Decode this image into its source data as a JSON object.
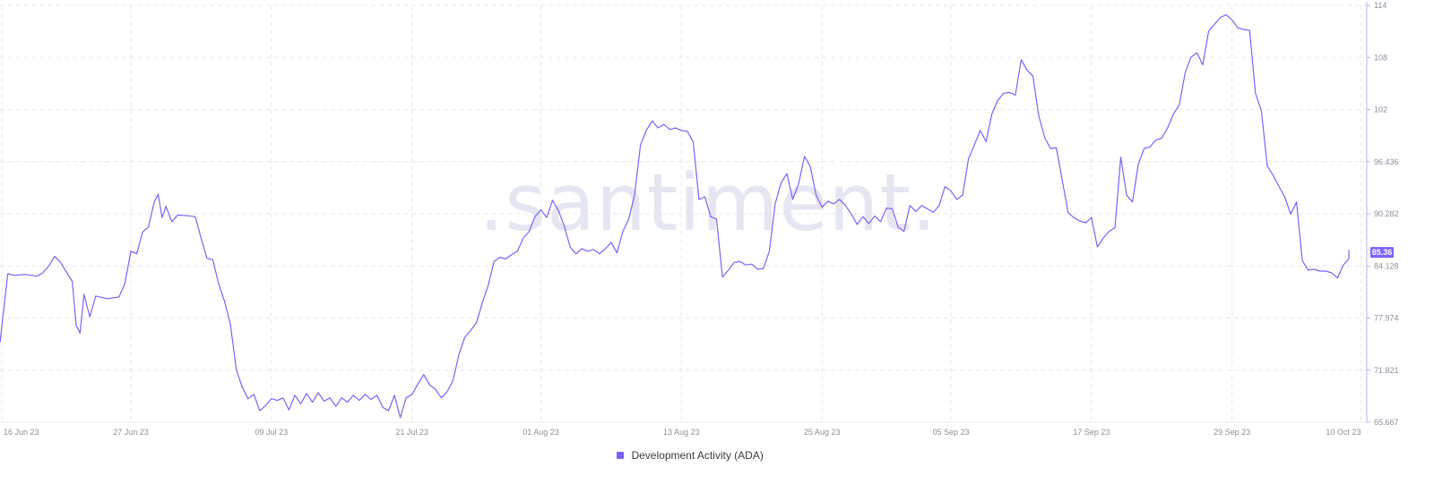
{
  "watermark": ".santiment.",
  "legend": {
    "label": "Development Activity (ADA)"
  },
  "colors": {
    "line": "#7b61ff",
    "grid": "#e6e8ee",
    "axis": "#b9b3ff",
    "badge_bg": "#7b61ff",
    "badge_text": "#ffffff"
  },
  "chart_data": {
    "type": "line",
    "series": [
      {
        "name": "Development Activity (ADA)"
      }
    ],
    "x_tick_labels": [
      "16 Jun 23",
      "27 Jun 23",
      "09 Jul 23",
      "21 Jul 23",
      "01 Aug 23",
      "13 Aug 23",
      "25 Aug 23",
      "05 Sep 23",
      "17 Sep 23",
      "29 Sep 23",
      "10 Oct 23"
    ],
    "y_tick_labels": [
      "114",
      "108",
      "102",
      "96.436",
      "90.282",
      "84.128",
      "77.974",
      "71.821",
      "65.667"
    ],
    "ylim": [
      65.667,
      114
    ],
    "last_value_label": "85.36",
    "grid": true,
    "legend_position": "bottom-center",
    "points": [
      [
        "16 Jun 23",
        74.9
      ],
      [
        "16 Jun 23",
        82.9
      ],
      [
        "17 Jun 23",
        82.7
      ],
      [
        "18 Jun 23",
        82.8
      ],
      [
        "19 Jun 23",
        82.6
      ],
      [
        "19 Jun 23",
        83.0
      ],
      [
        "20 Jun 23",
        83.8
      ],
      [
        "20 Jun 23",
        84.9
      ],
      [
        "21 Jun 23",
        84.2
      ],
      [
        "22 Jun 23",
        82.0
      ],
      [
        "22 Jun 23",
        76.9
      ],
      [
        "22 Jun 23",
        76.0
      ],
      [
        "23 Jun 23",
        80.5
      ],
      [
        "23 Jun 23",
        77.9
      ],
      [
        "24 Jun 23",
        80.3
      ],
      [
        "25 Jun 23",
        80.0
      ],
      [
        "26 Jun 23",
        80.2
      ],
      [
        "26 Jun 23",
        81.8
      ],
      [
        "27 Jun 23",
        85.5
      ],
      [
        "27 Jun 23",
        85.2
      ],
      [
        "28 Jun 23",
        87.7
      ],
      [
        "28 Jun 23",
        88.3
      ],
      [
        "29 Jun 23",
        91.2
      ],
      [
        "29 Jun 23",
        92.1
      ],
      [
        "29 Jun 23",
        89.4
      ],
      [
        "30 Jun 23",
        90.7
      ],
      [
        "30 Jun 23",
        88.9
      ],
      [
        "01 Jul 23",
        89.7
      ],
      [
        "02 Jul 23",
        89.6
      ],
      [
        "02 Jul 23",
        89.5
      ],
      [
        "03 Jul 23",
        87.0
      ],
      [
        "03 Jul 23",
        84.7
      ],
      [
        "04 Jul 23",
        84.5
      ],
      [
        "04 Jul 23",
        81.7
      ],
      [
        "05 Jul 23",
        79.7
      ],
      [
        "05 Jul 23",
        77.0
      ],
      [
        "06 Jul 23",
        71.8
      ],
      [
        "06 Jul 23",
        69.8
      ],
      [
        "07 Jul 23",
        68.4
      ],
      [
        "07 Jul 23",
        68.9
      ],
      [
        "08 Jul 23",
        67.0
      ],
      [
        "08 Jul 23",
        67.6
      ],
      [
        "09 Jul 23",
        68.4
      ],
      [
        "09 Jul 23",
        68.2
      ],
      [
        "10 Jul 23",
        68.5
      ],
      [
        "10 Jul 23",
        67.1
      ],
      [
        "11 Jul 23",
        68.8
      ],
      [
        "11 Jul 23",
        67.8
      ],
      [
        "12 Jul 23",
        69.0
      ],
      [
        "12 Jul 23",
        68.0
      ],
      [
        "13 Jul 23",
        69.1
      ],
      [
        "13 Jul 23",
        68.1
      ],
      [
        "14 Jul 23",
        68.5
      ],
      [
        "14 Jul 23",
        67.5
      ],
      [
        "15 Jul 23",
        68.5
      ],
      [
        "15 Jul 23",
        68.0
      ],
      [
        "16 Jul 23",
        68.8
      ],
      [
        "16 Jul 23",
        68.2
      ],
      [
        "17 Jul 23",
        68.9
      ],
      [
        "17 Jul 23",
        68.3
      ],
      [
        "18 Jul 23",
        68.8
      ],
      [
        "18 Jul 23",
        67.4
      ],
      [
        "19 Jul 23",
        67.0
      ],
      [
        "19 Jul 23",
        68.8
      ],
      [
        "20 Jul 23",
        66.2
      ],
      [
        "20 Jul 23",
        68.5
      ],
      [
        "21 Jul 23",
        68.9
      ],
      [
        "21 Jul 23",
        70.1
      ],
      [
        "22 Jul 23",
        71.2
      ],
      [
        "22 Jul 23",
        70.0
      ],
      [
        "23 Jul 23",
        69.5
      ],
      [
        "23 Jul 23",
        68.5
      ],
      [
        "24 Jul 23",
        69.2
      ],
      [
        "24 Jul 23",
        70.5
      ],
      [
        "25 Jul 23",
        73.5
      ],
      [
        "25 Jul 23",
        75.5
      ],
      [
        "26 Jul 23",
        76.3
      ],
      [
        "26 Jul 23",
        77.2
      ],
      [
        "27 Jul 23",
        79.5
      ],
      [
        "27 Jul 23",
        81.5
      ],
      [
        "28 Jul 23",
        84.3
      ],
      [
        "28 Jul 23",
        84.8
      ],
      [
        "29 Jul 23",
        84.6
      ],
      [
        "29 Jul 23",
        85.1
      ],
      [
        "30 Jul 23",
        85.5
      ],
      [
        "30 Jul 23",
        87.0
      ],
      [
        "31 Jul 23",
        87.8
      ],
      [
        "31 Jul 23",
        89.5
      ],
      [
        "01 Aug 23",
        90.3
      ],
      [
        "01 Aug 23",
        89.4
      ],
      [
        "02 Aug 23",
        91.4
      ],
      [
        "02 Aug 23",
        90.2
      ],
      [
        "03 Aug 23",
        88.4
      ],
      [
        "03 Aug 23",
        86.0
      ],
      [
        "04 Aug 23",
        85.2
      ],
      [
        "04 Aug 23",
        85.8
      ],
      [
        "05 Aug 23",
        85.5
      ],
      [
        "05 Aug 23",
        85.7
      ],
      [
        "06 Aug 23",
        85.2
      ],
      [
        "06 Aug 23",
        85.8
      ],
      [
        "07 Aug 23",
        86.5
      ],
      [
        "07 Aug 23",
        85.3
      ],
      [
        "08 Aug 23",
        87.8
      ],
      [
        "08 Aug 23",
        89.2
      ],
      [
        "09 Aug 23",
        92.0
      ],
      [
        "09 Aug 23",
        97.8
      ],
      [
        "10 Aug 23",
        99.5
      ],
      [
        "10 Aug 23",
        100.6
      ],
      [
        "11 Aug 23",
        99.8
      ],
      [
        "11 Aug 23",
        100.2
      ],
      [
        "12 Aug 23",
        99.6
      ],
      [
        "12 Aug 23",
        99.8
      ],
      [
        "13 Aug 23",
        99.5
      ],
      [
        "13 Aug 23",
        99.4
      ],
      [
        "14 Aug 23",
        98.2
      ],
      [
        "14 Aug 23",
        91.5
      ],
      [
        "15 Aug 23",
        91.8
      ],
      [
        "15 Aug 23",
        89.5
      ],
      [
        "16 Aug 23",
        89.2
      ],
      [
        "16 Aug 23",
        82.5
      ],
      [
        "17 Aug 23",
        83.3
      ],
      [
        "17 Aug 23",
        84.2
      ],
      [
        "18 Aug 23",
        84.3
      ],
      [
        "18 Aug 23",
        83.9
      ],
      [
        "19 Aug 23",
        84.0
      ],
      [
        "19 Aug 23",
        83.4
      ],
      [
        "20 Aug 23",
        83.5
      ],
      [
        "20 Aug 23",
        85.5
      ],
      [
        "21 Aug 23",
        91.0
      ],
      [
        "21 Aug 23",
        93.4
      ],
      [
        "22 Aug 23",
        94.5
      ],
      [
        "22 Aug 23",
        91.5
      ],
      [
        "23 Aug 23",
        93.3
      ],
      [
        "23 Aug 23",
        96.5
      ],
      [
        "24 Aug 23",
        95.3
      ],
      [
        "24 Aug 23",
        92.0
      ],
      [
        "25 Aug 23",
        90.6
      ],
      [
        "25 Aug 23",
        91.3
      ],
      [
        "26 Aug 23",
        91.0
      ],
      [
        "26 Aug 23",
        91.5
      ],
      [
        "27 Aug 23",
        90.8
      ],
      [
        "27 Aug 23",
        89.8
      ],
      [
        "28 Aug 23",
        88.6
      ],
      [
        "28 Aug 23",
        89.5
      ],
      [
        "29 Aug 23",
        88.7
      ],
      [
        "29 Aug 23",
        89.6
      ],
      [
        "30 Aug 23",
        88.9
      ],
      [
        "30 Aug 23",
        90.5
      ],
      [
        "31 Aug 23",
        90.4
      ],
      [
        "31 Aug 23",
        88.3
      ],
      [
        "01 Sep 23",
        87.8
      ],
      [
        "01 Sep 23",
        90.8
      ],
      [
        "02 Sep 23",
        90.1
      ],
      [
        "02 Sep 23",
        90.8
      ],
      [
        "03 Sep 23",
        90.4
      ],
      [
        "03 Sep 23",
        90.0
      ],
      [
        "04 Sep 23",
        90.8
      ],
      [
        "04 Sep 23",
        93.0
      ],
      [
        "05 Sep 23",
        92.5
      ],
      [
        "05 Sep 23",
        91.5
      ],
      [
        "06 Sep 23",
        92.0
      ],
      [
        "06 Sep 23",
        96.2
      ],
      [
        "07 Sep 23",
        97.8
      ],
      [
        "07 Sep 23",
        99.5
      ],
      [
        "08 Sep 23",
        98.2
      ],
      [
        "08 Sep 23",
        101.4
      ],
      [
        "09 Sep 23",
        103.0
      ],
      [
        "09 Sep 23",
        103.8
      ],
      [
        "10 Sep 23",
        103.9
      ],
      [
        "10 Sep 23",
        103.6
      ],
      [
        "11 Sep 23",
        107.7
      ],
      [
        "11 Sep 23",
        106.5
      ],
      [
        "12 Sep 23",
        105.8
      ],
      [
        "12 Sep 23",
        101.2
      ],
      [
        "13 Sep 23",
        98.7
      ],
      [
        "13 Sep 23",
        97.4
      ],
      [
        "14 Sep 23",
        97.5
      ],
      [
        "14 Sep 23",
        93.8
      ],
      [
        "15 Sep 23",
        90.0
      ],
      [
        "15 Sep 23",
        89.4
      ],
      [
        "16 Sep 23",
        89.0
      ],
      [
        "16 Sep 23",
        88.8
      ],
      [
        "17 Sep 23",
        89.4
      ],
      [
        "17 Sep 23",
        86.0
      ],
      [
        "18 Sep 23",
        87.0
      ],
      [
        "18 Sep 23",
        87.8
      ],
      [
        "19 Sep 23",
        88.2
      ],
      [
        "19 Sep 23",
        96.4
      ],
      [
        "20 Sep 23",
        92.0
      ],
      [
        "20 Sep 23",
        91.2
      ],
      [
        "21 Sep 23",
        95.6
      ],
      [
        "21 Sep 23",
        97.4
      ],
      [
        "22 Sep 23",
        97.6
      ],
      [
        "22 Sep 23",
        98.4
      ],
      [
        "23 Sep 23",
        98.6
      ],
      [
        "23 Sep 23",
        99.8
      ],
      [
        "24 Sep 23",
        101.4
      ],
      [
        "24 Sep 23",
        102.5
      ],
      [
        "25 Sep 23",
        106.2
      ],
      [
        "25 Sep 23",
        108.0
      ],
      [
        "26 Sep 23",
        108.5
      ],
      [
        "26 Sep 23",
        107.1
      ],
      [
        "27 Sep 23",
        111.0
      ],
      [
        "27 Sep 23",
        111.8
      ],
      [
        "28 Sep 23",
        112.6
      ],
      [
        "28 Sep 23",
        112.9
      ],
      [
        "29 Sep 23",
        112.3
      ],
      [
        "29 Sep 23",
        111.4
      ],
      [
        "30 Sep 23",
        111.2
      ],
      [
        "30 Sep 23",
        111.1
      ],
      [
        "01 Oct 23",
        103.8
      ],
      [
        "01 Oct 23",
        101.8
      ],
      [
        "02 Oct 23",
        95.4
      ],
      [
        "02 Oct 23",
        94.3
      ],
      [
        "03 Oct 23",
        93.0
      ],
      [
        "03 Oct 23",
        91.8
      ],
      [
        "04 Oct 23",
        89.8
      ],
      [
        "04 Oct 23",
        91.2
      ],
      [
        "05 Oct 23",
        84.4
      ],
      [
        "05 Oct 23",
        83.3
      ],
      [
        "06 Oct 23",
        83.4
      ],
      [
        "06 Oct 23",
        83.2
      ],
      [
        "07 Oct 23",
        83.2
      ],
      [
        "07 Oct 23",
        83.0
      ],
      [
        "08 Oct 23",
        82.4
      ],
      [
        "08 Oct 23",
        83.9
      ],
      [
        "09 Oct 23",
        84.6
      ],
      [
        "09 Oct 23",
        85.6
      ],
      [
        "10 Oct 23",
        85.36
      ]
    ]
  }
}
